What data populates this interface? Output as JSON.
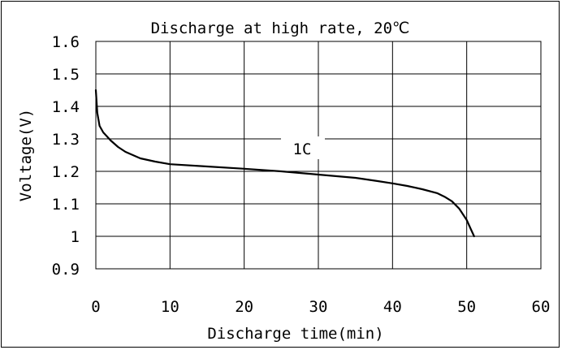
{
  "chart_data": {
    "type": "line",
    "title": "Discharge at high rate, 20℃",
    "xlabel": "Discharge time(min)",
    "ylabel": "Voltage(V)",
    "xlim": [
      0,
      60
    ],
    "ylim": [
      0.9,
      1.6
    ],
    "x_ticks": [
      0,
      10,
      20,
      30,
      40,
      50,
      60
    ],
    "x_tick_labels": [
      "0",
      "10",
      "20",
      "30",
      "40",
      "50",
      "60"
    ],
    "y_ticks": [
      0.9,
      1.0,
      1.1,
      1.2,
      1.3,
      1.4,
      1.5,
      1.6
    ],
    "y_tick_labels": [
      "0.9",
      "1",
      "1.1",
      "1.2",
      "1.3",
      "1.4",
      "1.5",
      "1.6"
    ],
    "grid": true,
    "series": [
      {
        "name": "1C",
        "color": "#000000",
        "x": [
          0,
          0.2,
          0.5,
          1,
          2,
          3,
          4,
          6,
          8,
          10,
          15,
          20,
          25,
          30,
          35,
          38,
          40,
          42,
          44,
          46,
          47,
          48,
          49,
          50,
          50.5,
          51
        ],
        "y": [
          1.45,
          1.38,
          1.34,
          1.32,
          1.295,
          1.275,
          1.26,
          1.24,
          1.23,
          1.222,
          1.215,
          1.208,
          1.2,
          1.19,
          1.18,
          1.17,
          1.163,
          1.155,
          1.145,
          1.133,
          1.122,
          1.108,
          1.085,
          1.05,
          1.025,
          1.0
        ]
      }
    ]
  }
}
